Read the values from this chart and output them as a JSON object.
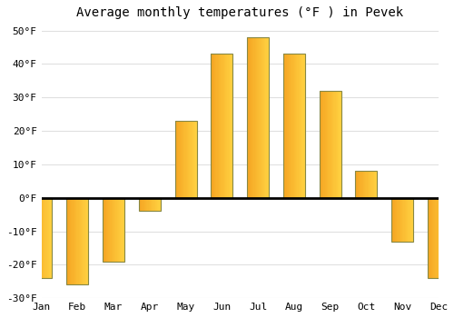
{
  "title": "Average monthly temperatures (°F ) in Pevek",
  "months": [
    "Jan",
    "Feb",
    "Mar",
    "Apr",
    "May",
    "Jun",
    "Jul",
    "Aug",
    "Sep",
    "Oct",
    "Nov",
    "Dec"
  ],
  "values": [
    -24,
    -26,
    -19,
    -4,
    23,
    43,
    48,
    43,
    32,
    8,
    -13,
    -24
  ],
  "bar_color_left": "#F5A623",
  "bar_color_right": "#FFD000",
  "bar_edge_color": "#888800",
  "ylim": [
    -30,
    52
  ],
  "yticks": [
    -30,
    -20,
    -10,
    0,
    10,
    20,
    30,
    40,
    50
  ],
  "ytick_labels": [
    "-30°F",
    "-20°F",
    "-10°F",
    "0°F",
    "10°F",
    "20°F",
    "30°F",
    "40°F",
    "50°F"
  ],
  "background_color": "#FFFFFF",
  "grid_color": "#E0E0E0",
  "title_fontsize": 10,
  "tick_fontsize": 8,
  "bar_width": 0.6,
  "figsize": [
    5.0,
    3.5
  ],
  "dpi": 100
}
